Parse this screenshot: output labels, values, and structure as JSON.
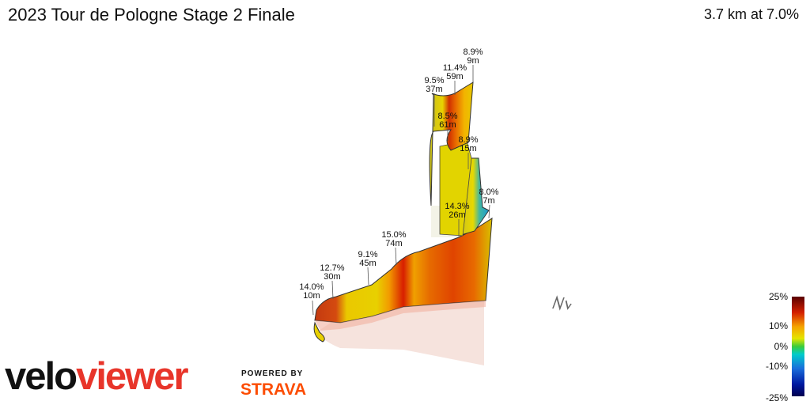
{
  "header": {
    "title": "2023 Tour de Pologne Stage 2 Finale",
    "summary": "3.7 km at 7.0%"
  },
  "segment_labels": [
    {
      "grade": "14.0%",
      "length": "10m"
    },
    {
      "grade": "12.7%",
      "length": "30m"
    },
    {
      "grade": "9.1%",
      "length": "45m"
    },
    {
      "grade": "15.0%",
      "length": "74m"
    },
    {
      "grade": "14.3%",
      "length": "26m"
    },
    {
      "grade": "8.0%",
      "length": "7m"
    },
    {
      "grade": "8.9%",
      "length": "15m"
    },
    {
      "grade": "8.5%",
      "length": "61m"
    },
    {
      "grade": "9.5%",
      "length": "37m"
    },
    {
      "grade": "11.4%",
      "length": "59m"
    },
    {
      "grade": "8.9%",
      "length": "9m"
    }
  ],
  "legend": {
    "ticks": [
      "25%",
      "10%",
      "0%",
      "-10%",
      "-25%"
    ],
    "colors": [
      "#5a0000",
      "#d42000",
      "#f5a200",
      "#e5e500",
      "#3bcc3b",
      "#00cccc",
      "#1a6fdb",
      "#0018a0",
      "#000050"
    ]
  },
  "compass": {
    "icon": "north-arrow-icon",
    "label": "N"
  },
  "branding": {
    "logo_part1": "velo",
    "logo_part2": "viewer",
    "powered_by": "POWERED BY",
    "strava": "STRAVA"
  }
}
